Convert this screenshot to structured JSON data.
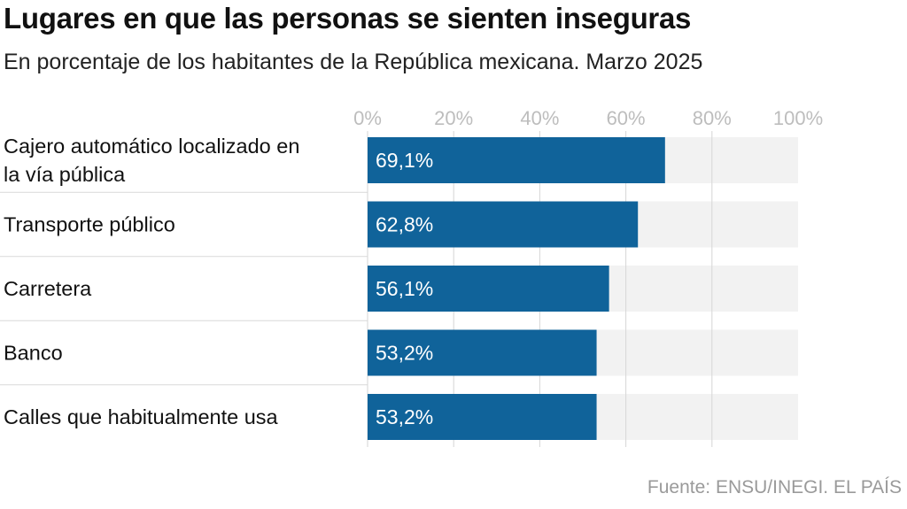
{
  "header": {
    "title": "Lugares en que las personas se sienten inseguras",
    "subtitle": "En porcentaje de los habitantes de la República mexicana. Marzo 2025"
  },
  "footer": {
    "source": "Fuente: ENSU/INEGI. EL PAÍS"
  },
  "colors": {
    "bar": "#10639a",
    "track": "#f2f2f2",
    "grid": "#d6d6d6",
    "separator": "#d9d9d9"
  },
  "chart_data": {
    "type": "bar",
    "orientation": "horizontal",
    "title": "Lugares en que las personas se sienten inseguras",
    "subtitle": "En porcentaje de los habitantes de la República mexicana. Marzo 2025",
    "categories": [
      "Cajero automático localizado en la vía pública",
      "Transporte público",
      "Carretera",
      "Banco",
      "Calles que habitualmente usa"
    ],
    "category_lines": [
      [
        "Cajero automático localizado en",
        "la vía pública"
      ],
      [
        "Transporte público"
      ],
      [
        "Carretera"
      ],
      [
        "Banco"
      ],
      [
        "Calles que habitualmente usa"
      ]
    ],
    "values": [
      69.1,
      62.8,
      56.1,
      53.2,
      53.2
    ],
    "value_labels": [
      "69,1%",
      "62,8%",
      "56,1%",
      "53,2%",
      "53,2%"
    ],
    "xlim": [
      0,
      100
    ],
    "xticks": [
      0,
      20,
      40,
      60,
      80,
      100
    ],
    "xtick_labels": [
      "0%",
      "20%",
      "40%",
      "60%",
      "80%",
      "100%"
    ],
    "xlabel": "",
    "ylabel": "",
    "grid": true,
    "legend": "none"
  }
}
